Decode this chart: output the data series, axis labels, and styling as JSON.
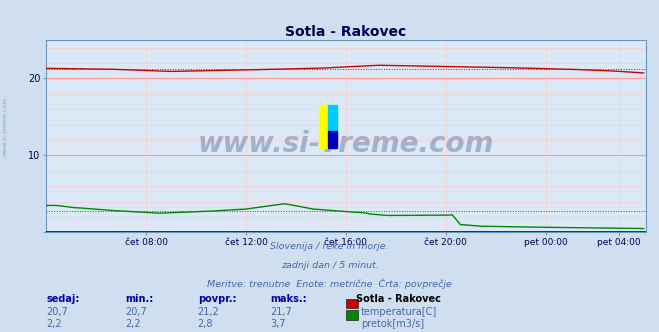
{
  "title": "Sotla - Rakovec",
  "bg_color": "#d0dff0",
  "plot_bg_color": "#dce8f5",
  "grid_color_major": "#ff9999",
  "grid_color_minor": "#ffcccc",
  "title_color": "#000055",
  "tick_color": "#000055",
  "text_color": "#4466aa",
  "bold_text_color": "#0000aa",
  "watermark": "www.si-vreme.com",
  "sidebar_text": "www.si-vreme.com",
  "subtitle_lines": [
    "Slovenija / reke in morje.",
    "zadnji dan / 5 minut.",
    "Meritve: trenutne  Enote: metrične  Črta: povprečje"
  ],
  "x_labels": [
    "čet 08:00",
    "čet 12:00",
    "čet 16:00",
    "čet 20:00",
    "pet 00:00",
    "pet 04:00"
  ],
  "x_tick_pos": [
    48,
    96,
    144,
    192,
    240,
    275
  ],
  "ylim": [
    0,
    25
  ],
  "xlim_min": 0,
  "xlim_max": 288,
  "temp_color": "#cc0000",
  "flow_color": "#008800",
  "blue_line_color": "#0000bb",
  "temp_mean": 21.2,
  "flow_mean": 2.8,
  "legend_title": "Sotla - Rakovec",
  "legend_items": [
    {
      "label": "temperatura[C]",
      "color": "#cc0000"
    },
    {
      "label": "pretok[m3/s]",
      "color": "#008800"
    }
  ],
  "table_headers": [
    "sedaj:",
    "min.:",
    "povpr.:",
    "maks.:"
  ],
  "table_rows": [
    [
      "20,7",
      "20,7",
      "21,2",
      "21,7"
    ],
    [
      "2,2",
      "2,2",
      "2,8",
      "3,7"
    ]
  ],
  "logo_colors": [
    "#ffff00",
    "#00ccff",
    "#0000bb"
  ],
  "n_points": 288
}
